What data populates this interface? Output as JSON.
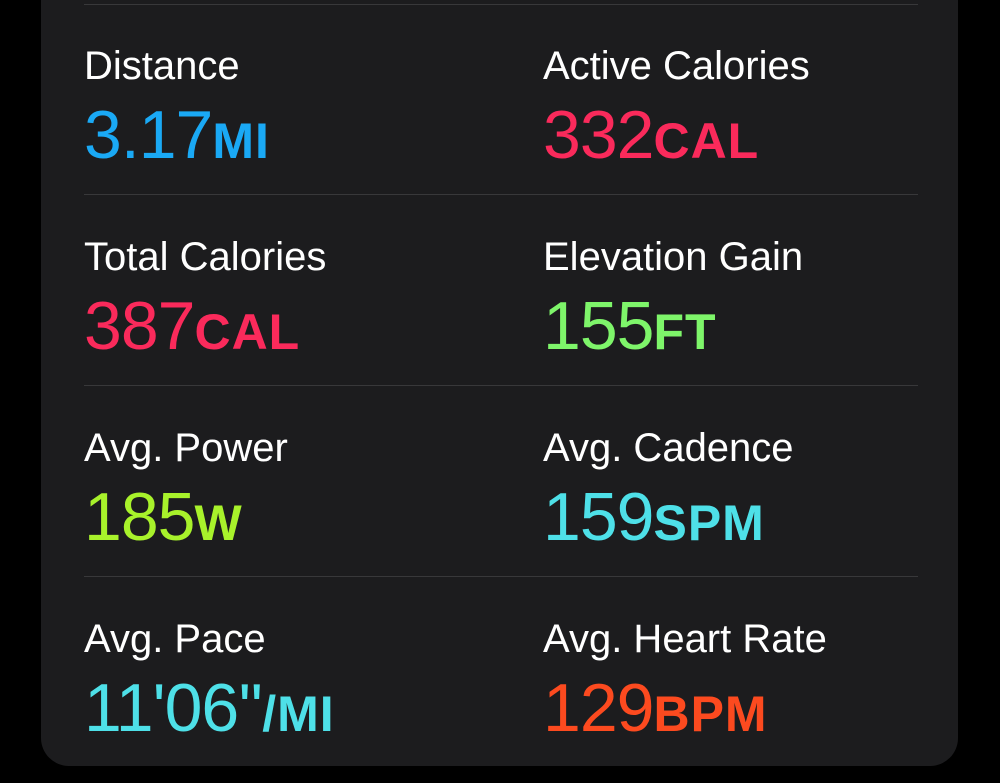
{
  "metrics": [
    {
      "left": {
        "label": "Distance",
        "value": "3.17",
        "unit": "MI",
        "color": "#1aa9f5"
      },
      "right": {
        "label": "Active Calories",
        "value": "332",
        "unit": "CAL",
        "color": "#fa2a5b"
      }
    },
    {
      "left": {
        "label": "Total Calories",
        "value": "387",
        "unit": "CAL",
        "color": "#fa2a5b"
      },
      "right": {
        "label": "Elevation Gain",
        "value": "155",
        "unit": "FT",
        "color": "#7ef56a"
      }
    },
    {
      "left": {
        "label": "Avg. Power",
        "value": "185",
        "unit": "W",
        "color": "#a8f22b"
      },
      "right": {
        "label": "Avg. Cadence",
        "value": "159",
        "unit": "SPM",
        "color": "#4ee0e8"
      }
    },
    {
      "left": {
        "label": "Avg. Pace",
        "value": "11'06''",
        "unit": "/MI",
        "color": "#4ee0e8"
      },
      "right": {
        "label": "Avg. Heart Rate",
        "value": "129",
        "unit": "BPM",
        "color": "#fc4a1f"
      }
    }
  ]
}
